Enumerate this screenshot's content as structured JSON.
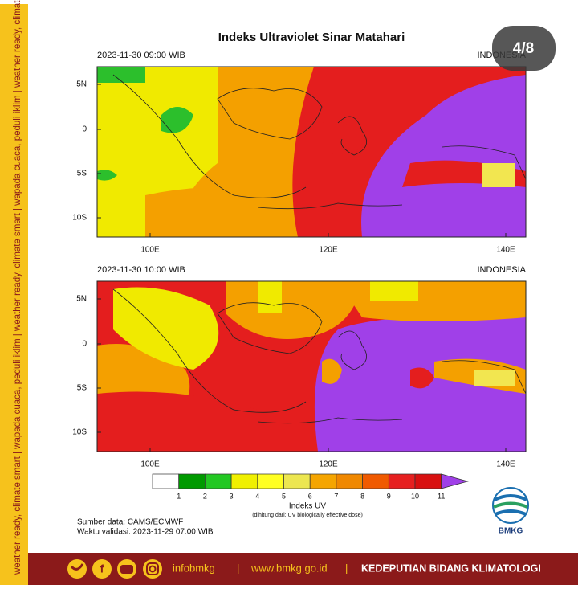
{
  "counter": "4/8",
  "side_banner": "weather ready, climate smart  |  wapada cuaca, peduli iklim  |  weather ready, climate smart  |  wapada cuaca, peduli iklim  |  weather ready, climate smart  |  wapada cuaca, peduli iklim",
  "title": "Indeks Ultraviolet Sinar Matahari",
  "panels": [
    {
      "datetime": "2023-11-30  09:00 WIB",
      "region": "INDONESIA",
      "lat_labels": [
        "5N",
        "0",
        "5S",
        "10S"
      ],
      "lon_labels": [
        "100E",
        "120E",
        "140E"
      ]
    },
    {
      "datetime": "2023-11-30  10:00 WIB",
      "region": "INDONESIA",
      "lat_labels": [
        "5N",
        "0",
        "5S",
        "10S"
      ],
      "lon_labels": [
        "100E",
        "120E",
        "140E"
      ]
    }
  ],
  "colorbar": {
    "labels": [
      "1",
      "2",
      "3",
      "4",
      "5",
      "6",
      "7",
      "8",
      "9",
      "10",
      "11"
    ],
    "title": "Indeks UV",
    "subtitle": "(dihitung dari: UV biologically effective dose)"
  },
  "source": "Sumber data: CAMS/ECMWF",
  "validity": "Waktu validasi: 2023-11-29 07:00 WIB",
  "logo_text": "BMKG",
  "footer": {
    "handle": "infobmkg",
    "separator_1": "|",
    "website": "www.bmkg.go.id",
    "separator_2": "|",
    "department": "KEDEPUTIAN BIDANG KLIMATOLOGI"
  }
}
